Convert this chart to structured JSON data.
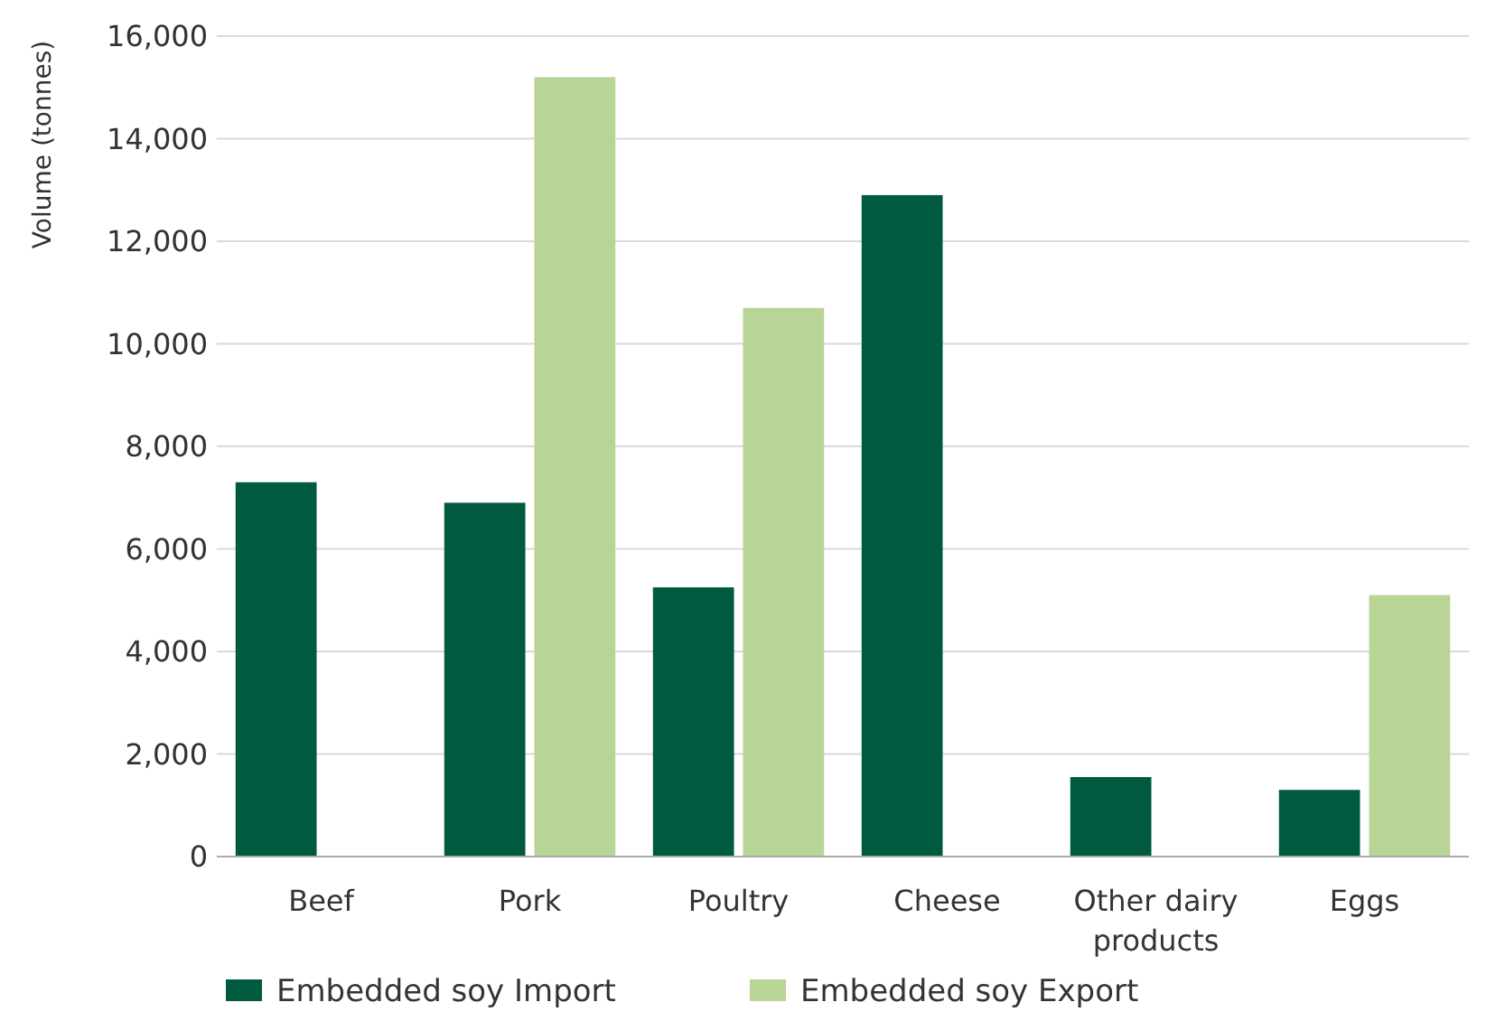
{
  "chart_data": {
    "type": "bar",
    "ylabel": "Volume (tonnes)",
    "categories": [
      "Beef",
      "Pork",
      "Poultry",
      "Cheese",
      "Other dairy products",
      "Eggs"
    ],
    "series": [
      {
        "name": "Embedded soy Import",
        "color": "#005a40",
        "values": [
          7300,
          6900,
          5250,
          12900,
          1550,
          1300
        ]
      },
      {
        "name": "Embedded soy Export",
        "color": "#b8d497",
        "values": [
          0,
          15200,
          10700,
          0,
          0,
          5100
        ]
      }
    ],
    "ylim": [
      0,
      16000
    ],
    "yticks": [
      {
        "value": 0,
        "label": "0"
      },
      {
        "value": 2000,
        "label": "2,000"
      },
      {
        "value": 4000,
        "label": "4,000"
      },
      {
        "value": 6000,
        "label": "6,000"
      },
      {
        "value": 8000,
        "label": "8,000"
      },
      {
        "value": 10000,
        "label": "10,000"
      },
      {
        "value": 12000,
        "label": "12,000"
      },
      {
        "value": 14000,
        "label": "14,000"
      },
      {
        "value": 16000,
        "label": "16,000"
      }
    ],
    "grid": "y",
    "legend": "bottom"
  }
}
